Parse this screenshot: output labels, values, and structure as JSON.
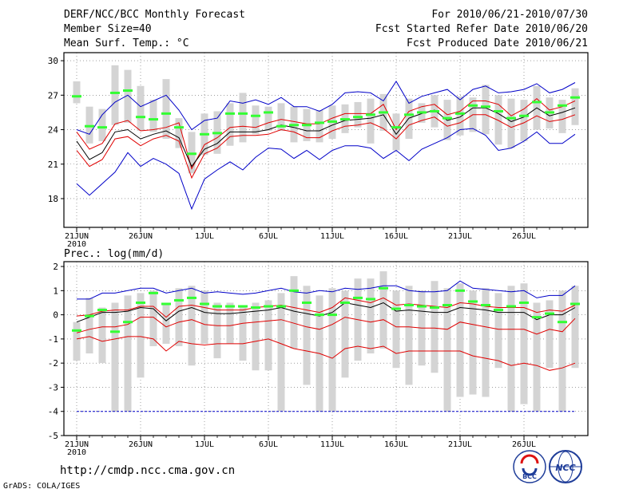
{
  "header": {
    "title": "DERF/NCC/BCC Monthly Forecast",
    "members": "Member Size=40",
    "temp_label": "Mean Surf. Temp.: °C",
    "period": "For 2010/06/21-2010/07/30",
    "started": "Fcst Started Refer Date 2010/06/20",
    "produced": "Fcst Produced Date 2010/06/21"
  },
  "footer": {
    "url": "http://cmdp.ncc.cma.gov.cn",
    "grads": "GrADS: COLA/IGES"
  },
  "logos": {
    "left": "BCC",
    "right": "NCC"
  },
  "colors": {
    "mean": "#000000",
    "spread": "#e00000",
    "extreme": "#0000c8",
    "box": "#d4d4d4",
    "bar": "#33ff33"
  },
  "chart_data": [
    {
      "type": "line",
      "title": "Mean Surf. Temp.: °C",
      "x_ticks": [
        {
          "day": 0,
          "label": "21JUN",
          "sub": "2010"
        },
        {
          "day": 5,
          "label": "26JUN"
        },
        {
          "day": 10,
          "label": "1JUL"
        },
        {
          "day": 15,
          "label": "6JUL"
        },
        {
          "day": 20,
          "label": "11JUL"
        },
        {
          "day": 25,
          "label": "16JUL"
        },
        {
          "day": 30,
          "label": "21JUL"
        },
        {
          "day": 35,
          "label": "26JUL"
        }
      ],
      "xlim": [
        -1,
        40
      ],
      "ylim": [
        15.5,
        30.7
      ],
      "y_ticks": [
        18,
        21,
        24,
        27,
        30
      ],
      "series": [
        {
          "name": "max",
          "color": "#0000c8",
          "values": [
            24.0,
            23.6,
            25.3,
            26.4,
            27.0,
            26.0,
            26.5,
            27.0,
            25.7,
            24.0,
            24.8,
            25.0,
            26.5,
            26.3,
            26.6,
            26.2,
            26.8,
            26.0,
            26.0,
            25.6,
            26.2,
            27.2,
            27.3,
            27.2,
            26.5,
            28.2,
            26.3,
            26.9,
            27.2,
            27.5,
            26.6,
            27.5,
            27.8,
            27.2,
            27.3,
            27.5,
            28.0,
            27.2,
            27.5,
            28.1
          ]
        },
        {
          "name": "upper",
          "color": "#e00000",
          "values": [
            23.8,
            22.3,
            22.8,
            24.5,
            24.8,
            23.9,
            24.0,
            24.2,
            24.6,
            20.6,
            22.7,
            23.3,
            24.2,
            24.3,
            24.2,
            24.6,
            24.9,
            24.7,
            24.5,
            24.5,
            25.0,
            25.4,
            25.4,
            25.4,
            26.2,
            24.0,
            25.6,
            26.0,
            26.2,
            25.3,
            25.6,
            26.5,
            26.5,
            26.2,
            25.2,
            25.8,
            26.7,
            25.7,
            26.0,
            26.5
          ]
        },
        {
          "name": "mean",
          "color": "#000000",
          "values": [
            23.0,
            21.4,
            22.0,
            23.8,
            24.0,
            23.2,
            23.6,
            23.9,
            23.3,
            20.8,
            22.3,
            22.8,
            23.8,
            23.8,
            23.8,
            24.0,
            24.4,
            24.2,
            23.9,
            23.9,
            24.4,
            24.8,
            24.9,
            25.0,
            25.3,
            23.6,
            25.0,
            25.4,
            25.7,
            24.8,
            25.1,
            25.9,
            25.9,
            25.4,
            24.7,
            25.1,
            25.9,
            25.2,
            25.5,
            25.9
          ]
        },
        {
          "name": "lower",
          "color": "#e00000",
          "values": [
            22.2,
            20.8,
            21.4,
            23.2,
            23.4,
            22.6,
            23.2,
            23.5,
            23.0,
            19.8,
            21.9,
            22.4,
            23.4,
            23.5,
            23.5,
            23.6,
            24.0,
            23.8,
            23.3,
            23.3,
            23.9,
            24.3,
            24.4,
            24.6,
            24.1,
            23.2,
            24.4,
            24.8,
            25.1,
            24.3,
            24.6,
            25.3,
            25.3,
            24.8,
            24.2,
            24.6,
            25.2,
            24.7,
            24.9,
            25.3
          ]
        },
        {
          "name": "min",
          "color": "#0000c8",
          "values": [
            19.3,
            18.3,
            19.3,
            20.3,
            22.0,
            20.8,
            21.5,
            21.0,
            20.2,
            17.1,
            19.7,
            20.5,
            21.2,
            20.5,
            21.6,
            22.4,
            22.3,
            21.5,
            22.2,
            21.4,
            22.2,
            22.6,
            22.6,
            22.4,
            21.5,
            22.2,
            21.3,
            22.3,
            22.8,
            23.3,
            24.0,
            24.1,
            23.5,
            22.2,
            22.4,
            23.0,
            23.8,
            22.8,
            22.8,
            23.6
          ]
        }
      ],
      "boxes": [
        [
          26.3,
          28.2
        ],
        [
          22.8,
          26.0
        ],
        [
          23.0,
          25.8
        ],
        [
          24.4,
          29.6
        ],
        [
          24.6,
          29.2
        ],
        [
          23.9,
          27.8
        ],
        [
          23.8,
          26.6
        ],
        [
          23.2,
          28.4
        ],
        [
          22.4,
          25.0
        ],
        [
          20.2,
          23.8
        ],
        [
          21.8,
          25.4
        ],
        [
          21.9,
          25.6
        ],
        [
          22.6,
          26.3
        ],
        [
          22.9,
          27.2
        ],
        [
          23.6,
          26.1
        ],
        [
          23.9,
          26.0
        ],
        [
          23.9,
          26.3
        ],
        [
          22.9,
          26.0
        ],
        [
          23.0,
          25.8
        ],
        [
          22.9,
          25.7
        ],
        [
          23.2,
          26.1
        ],
        [
          23.7,
          26.2
        ],
        [
          24.2,
          26.4
        ],
        [
          22.8,
          26.7
        ],
        [
          23.9,
          27.1
        ],
        [
          22.2,
          25.4
        ],
        [
          23.2,
          26.7
        ],
        [
          24.6,
          26.3
        ],
        [
          24.2,
          27.0
        ],
        [
          23.1,
          26.6
        ],
        [
          23.5,
          26.9
        ],
        [
          23.8,
          26.8
        ],
        [
          23.6,
          27.9
        ],
        [
          22.7,
          27.0
        ],
        [
          22.4,
          26.7
        ],
        [
          23.0,
          26.6
        ],
        [
          24.0,
          27.8
        ],
        [
          24.1,
          26.8
        ],
        [
          23.7,
          26.6
        ],
        [
          24.4,
          27.6
        ]
      ],
      "obs": [
        26.9,
        24.3,
        24.2,
        27.2,
        27.4,
        25.1,
        24.9,
        25.4,
        24.2,
        21.9,
        23.6,
        23.7,
        25.4,
        25.4,
        25.2,
        25.5,
        24.3,
        24.4,
        24.4,
        24.6,
        24.7,
        24.9,
        25.1,
        25.3,
        25.5,
        24.2,
        25.3,
        25.5,
        25.6,
        25.0,
        25.4,
        26.1,
        26.0,
        25.6,
        25.0,
        25.2,
        26.4,
        25.5,
        26.1,
        26.8
      ]
    },
    {
      "type": "line",
      "title": "Prec.: log(mm/d)",
      "x_ticks": [
        {
          "day": 0,
          "label": "21JUN",
          "sub": "2010"
        },
        {
          "day": 5,
          "label": "26JUN"
        },
        {
          "day": 10,
          "label": "1JUL"
        },
        {
          "day": 15,
          "label": "6JUL"
        },
        {
          "day": 20,
          "label": "11JUL"
        },
        {
          "day": 25,
          "label": "16JUL"
        },
        {
          "day": 30,
          "label": "21JUL"
        },
        {
          "day": 35,
          "label": "26JUL"
        }
      ],
      "xlim": [
        -1,
        40
      ],
      "ylim": [
        -5,
        2.2
      ],
      "y_ticks": [
        -5,
        -4,
        -3,
        -2,
        -1,
        0,
        1,
        2
      ],
      "series": [
        {
          "name": "max",
          "color": "#0000c8",
          "values": [
            0.65,
            0.65,
            0.9,
            0.9,
            1.0,
            1.1,
            1.1,
            0.9,
            1.0,
            1.1,
            0.9,
            0.95,
            0.9,
            0.85,
            0.9,
            1.0,
            1.1,
            0.95,
            0.9,
            1.0,
            0.95,
            1.1,
            1.05,
            1.1,
            1.2,
            1.2,
            1.0,
            0.95,
            0.95,
            1.0,
            1.4,
            1.1,
            1.05,
            1.0,
            0.95,
            1.0,
            0.7,
            0.8,
            0.8,
            1.2
          ]
        },
        {
          "name": "upper",
          "color": "#e00000",
          "values": [
            -0.05,
            0.0,
            0.15,
            0.2,
            0.2,
            0.35,
            0.35,
            -0.1,
            0.35,
            0.4,
            0.3,
            0.2,
            0.2,
            0.2,
            0.3,
            0.35,
            0.4,
            0.3,
            0.2,
            0.1,
            0.3,
            0.7,
            0.6,
            0.5,
            0.7,
            0.4,
            0.45,
            0.4,
            0.35,
            0.3,
            0.5,
            0.45,
            0.35,
            0.3,
            0.3,
            0.3,
            0.1,
            0.2,
            0.15,
            0.4
          ]
        },
        {
          "name": "mean",
          "color": "#000000",
          "values": [
            -0.3,
            -0.1,
            0.1,
            0.1,
            0.15,
            0.3,
            0.25,
            -0.25,
            0.15,
            0.3,
            0.1,
            0.05,
            0.05,
            0.1,
            0.15,
            0.2,
            0.3,
            0.15,
            0.05,
            -0.05,
            0.1,
            0.5,
            0.4,
            0.3,
            0.5,
            0.15,
            0.2,
            0.15,
            0.1,
            0.1,
            0.3,
            0.25,
            0.2,
            0.1,
            0.1,
            0.1,
            -0.2,
            0.0,
            0.0,
            0.3
          ]
        },
        {
          "name": "lower",
          "color": "#e00000",
          "values": [
            -0.75,
            -0.6,
            -0.5,
            -0.5,
            -0.4,
            -0.1,
            -0.1,
            -0.5,
            -0.3,
            -0.2,
            -0.4,
            -0.45,
            -0.45,
            -0.35,
            -0.3,
            -0.25,
            -0.2,
            -0.35,
            -0.5,
            -0.6,
            -0.4,
            -0.1,
            -0.2,
            -0.3,
            -0.2,
            -0.5,
            -0.5,
            -0.55,
            -0.55,
            -0.6,
            -0.3,
            -0.4,
            -0.5,
            -0.6,
            -0.6,
            -0.6,
            -0.8,
            -0.6,
            -0.7,
            -0.15
          ]
        },
        {
          "name": "min",
          "color": "#e00000",
          "values": [
            -1.0,
            -0.9,
            -1.1,
            -1.0,
            -0.9,
            -0.9,
            -1.0,
            -1.5,
            -1.1,
            -1.2,
            -1.25,
            -1.2,
            -1.2,
            -1.2,
            -1.1,
            -1.0,
            -1.2,
            -1.4,
            -1.5,
            -1.6,
            -1.8,
            -1.4,
            -1.3,
            -1.4,
            -1.3,
            -1.6,
            -1.5,
            -1.5,
            -1.5,
            -1.5,
            -1.5,
            -1.7,
            -1.8,
            -1.9,
            -2.1,
            -2.0,
            -2.1,
            -2.3,
            -2.2,
            -2.0
          ]
        },
        {
          "name": "floor",
          "color": "#0000c8",
          "values": [
            -4.0,
            -4.0,
            -4.0,
            -4.0,
            -4.0,
            -4.0,
            -4.0,
            -4.0,
            -4.0,
            -4.0,
            -4.0,
            -4.0,
            -4.0,
            -4.0,
            -4.0,
            -4.0,
            -4.0,
            -4.0,
            -4.0,
            -4.0,
            -4.0,
            -4.0,
            -4.0,
            -4.0,
            -4.0,
            -4.0,
            -4.0,
            -4.0,
            -4.0,
            -4.0,
            -4.0,
            -4.0,
            -4.0,
            -4.0,
            -4.0,
            -4.0,
            -4.0,
            -4.0,
            -4.0,
            -4.0
          ]
        }
      ],
      "boxes": [
        [
          -1.9,
          -0.3
        ],
        [
          -1.6,
          0.7
        ],
        [
          -2.0,
          0.3
        ],
        [
          -4.0,
          0.5
        ],
        [
          -4.0,
          0.8
        ],
        [
          -2.6,
          0.9
        ],
        [
          -1.3,
          1.0
        ],
        [
          -1.2,
          0.5
        ],
        [
          -1.3,
          1.1
        ],
        [
          -2.1,
          1.2
        ],
        [
          -1.2,
          1.0
        ],
        [
          -1.8,
          0.5
        ],
        [
          -1.2,
          0.5
        ],
        [
          -1.9,
          0.4
        ],
        [
          -2.3,
          0.5
        ],
        [
          -2.3,
          0.6
        ],
        [
          -4.0,
          0.9
        ],
        [
          -1.4,
          1.6
        ],
        [
          -2.9,
          1.2
        ],
        [
          -4.0,
          0.8
        ],
        [
          -4.0,
          1.1
        ],
        [
          -2.6,
          1.0
        ],
        [
          -1.9,
          1.5
        ],
        [
          -1.6,
          1.5
        ],
        [
          -1.4,
          1.8
        ],
        [
          -2.2,
          1.0
        ],
        [
          -2.9,
          1.2
        ],
        [
          -2.1,
          1.0
        ],
        [
          -2.4,
          1.4
        ],
        [
          -4.0,
          1.1
        ],
        [
          -3.4,
          1.3
        ],
        [
          -3.3,
          1.0
        ],
        [
          -3.4,
          1.1
        ],
        [
          -2.2,
          0.9
        ],
        [
          -4.0,
          1.2
        ],
        [
          -3.7,
          1.3
        ],
        [
          -4.0,
          0.5
        ],
        [
          -2.2,
          0.6
        ],
        [
          -4.0,
          1.0
        ],
        [
          -2.2,
          1.2
        ]
      ],
      "obs": [
        -0.65,
        -0.05,
        0.2,
        -0.7,
        -0.3,
        0.5,
        0.9,
        0.45,
        0.6,
        0.7,
        0.45,
        0.35,
        0.35,
        0.35,
        0.3,
        0.35,
        0.35,
        1.0,
        0.5,
        0.0,
        0.0,
        0.5,
        0.7,
        0.65,
        1.1,
        0.25,
        0.4,
        0.35,
        0.3,
        0.4,
        1.0,
        0.55,
        0.4,
        0.2,
        0.35,
        0.5,
        -0.1,
        0.05,
        -0.3,
        0.45
      ]
    }
  ]
}
